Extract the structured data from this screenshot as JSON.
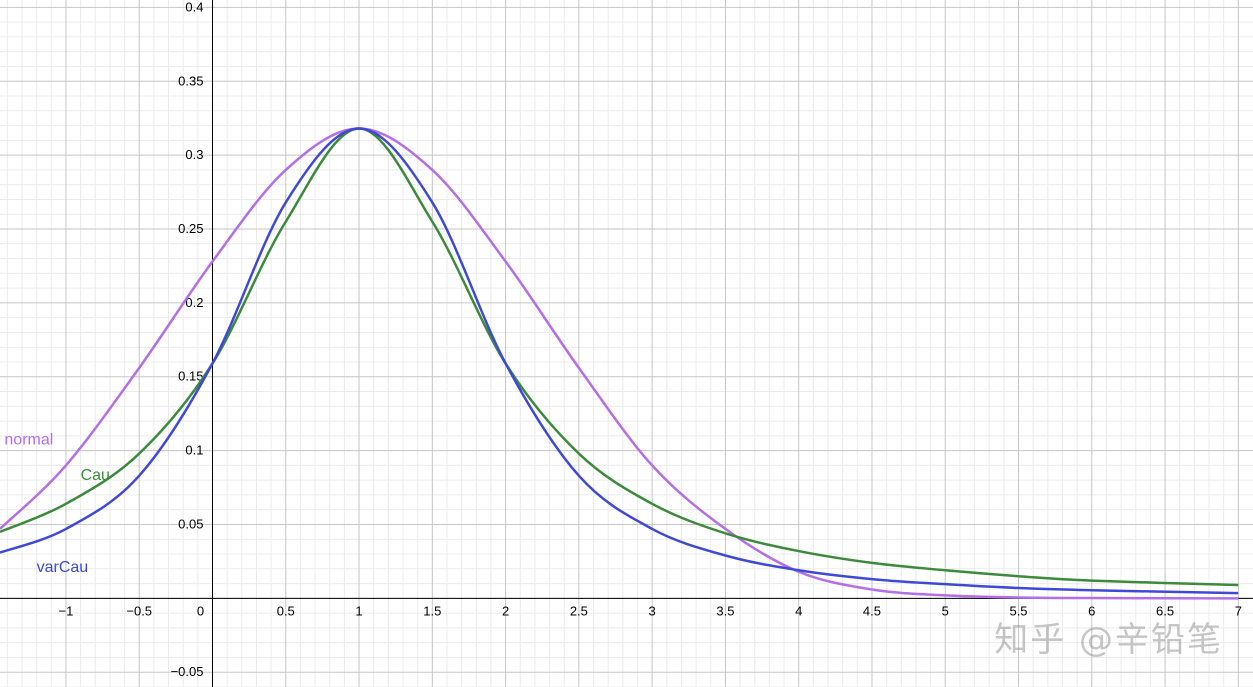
{
  "chart_data": {
    "type": "line",
    "title": "",
    "xlabel": "",
    "ylabel": "",
    "xlim": [
      -1.45,
      7.1
    ],
    "ylim": [
      -0.06,
      0.405
    ],
    "grid": true,
    "x_tick_labels": [
      "−1",
      "−0.5",
      "0",
      "0.5",
      "1",
      "1.5",
      "2",
      "2.5",
      "3",
      "3.5",
      "4",
      "4.5",
      "5",
      "5.5",
      "6",
      "6.5",
      "7"
    ],
    "y_tick_labels": [
      "−0.05",
      "0.05",
      "0.1",
      "0.15",
      "0.2",
      "0.25",
      "0.3",
      "0.35",
      "0.4"
    ],
    "series": [
      {
        "name": "normal",
        "color": "#b36ee8",
        "x": [
          -1.45,
          -1,
          -0.5,
          0,
          0.5,
          1,
          1.5,
          2,
          2.5,
          3,
          3.5,
          4,
          4.5,
          5,
          5.5,
          6,
          7
        ],
        "y": [
          0.047,
          0.09,
          0.156,
          0.228,
          0.29,
          0.318,
          0.29,
          0.228,
          0.156,
          0.09,
          0.047,
          0.018,
          0.006,
          0.002,
          0.0006,
          0.0002,
          0.0
        ]
      },
      {
        "name": "Cau",
        "color": "#3c8a3c",
        "x": [
          -1.45,
          -1,
          -0.5,
          0,
          0.5,
          1,
          1.5,
          2,
          2.5,
          3,
          3.5,
          4,
          4.5,
          5,
          5.5,
          6,
          7
        ],
        "y": [
          0.045,
          0.064,
          0.098,
          0.159,
          0.255,
          0.318,
          0.255,
          0.159,
          0.098,
          0.064,
          0.044,
          0.032,
          0.024,
          0.019,
          0.015,
          0.012,
          0.009
        ]
      },
      {
        "name": "varCau",
        "color": "#3f49d6",
        "x": [
          -1.45,
          -1,
          -0.5,
          0,
          0.5,
          1,
          1.5,
          2,
          2.5,
          3,
          3.5,
          4,
          4.5,
          5,
          5.5,
          6,
          7
        ],
        "y": [
          0.031,
          0.047,
          0.083,
          0.159,
          0.268,
          0.318,
          0.268,
          0.159,
          0.083,
          0.047,
          0.029,
          0.019,
          0.013,
          0.0096,
          0.007,
          0.0055,
          0.0035
        ]
      }
    ],
    "annotations": [
      {
        "text": "normal",
        "color": "#b36ee8",
        "x": -1.42,
        "y": 0.104
      },
      {
        "text": "Cau",
        "color": "#3c8a3c",
        "x": -0.9,
        "y": 0.08
      },
      {
        "text": "varCau",
        "color": "#3f49d6",
        "x": -1.2,
        "y": 0.018
      }
    ]
  },
  "watermark": "知乎 @辛铅笔"
}
